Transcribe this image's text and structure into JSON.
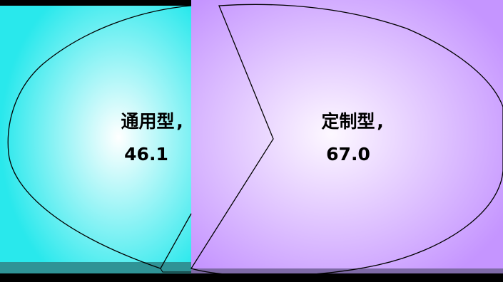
{
  "chart_data": {
    "type": "pie",
    "title": "",
    "legend": "none",
    "slices": [
      {
        "category": "通用型",
        "value": 46.1,
        "value_label": "46.1",
        "color": "#2ae6e8"
      },
      {
        "category": "定制型",
        "value": 67.0,
        "value_label": "67.0",
        "color": "#c99bfc"
      }
    ],
    "data_label_format": "category, value"
  },
  "colors": {
    "background": "#000000",
    "cyan_edge": "#29e8ec",
    "cyan_center": "#ffffff",
    "purple_edge": "#c595ff",
    "purple_center": "#fdf8ff",
    "outline": "#000000",
    "bottom_strip_cyan": "#2f9396",
    "bottom_strip_purple": "#7e6aa6"
  }
}
